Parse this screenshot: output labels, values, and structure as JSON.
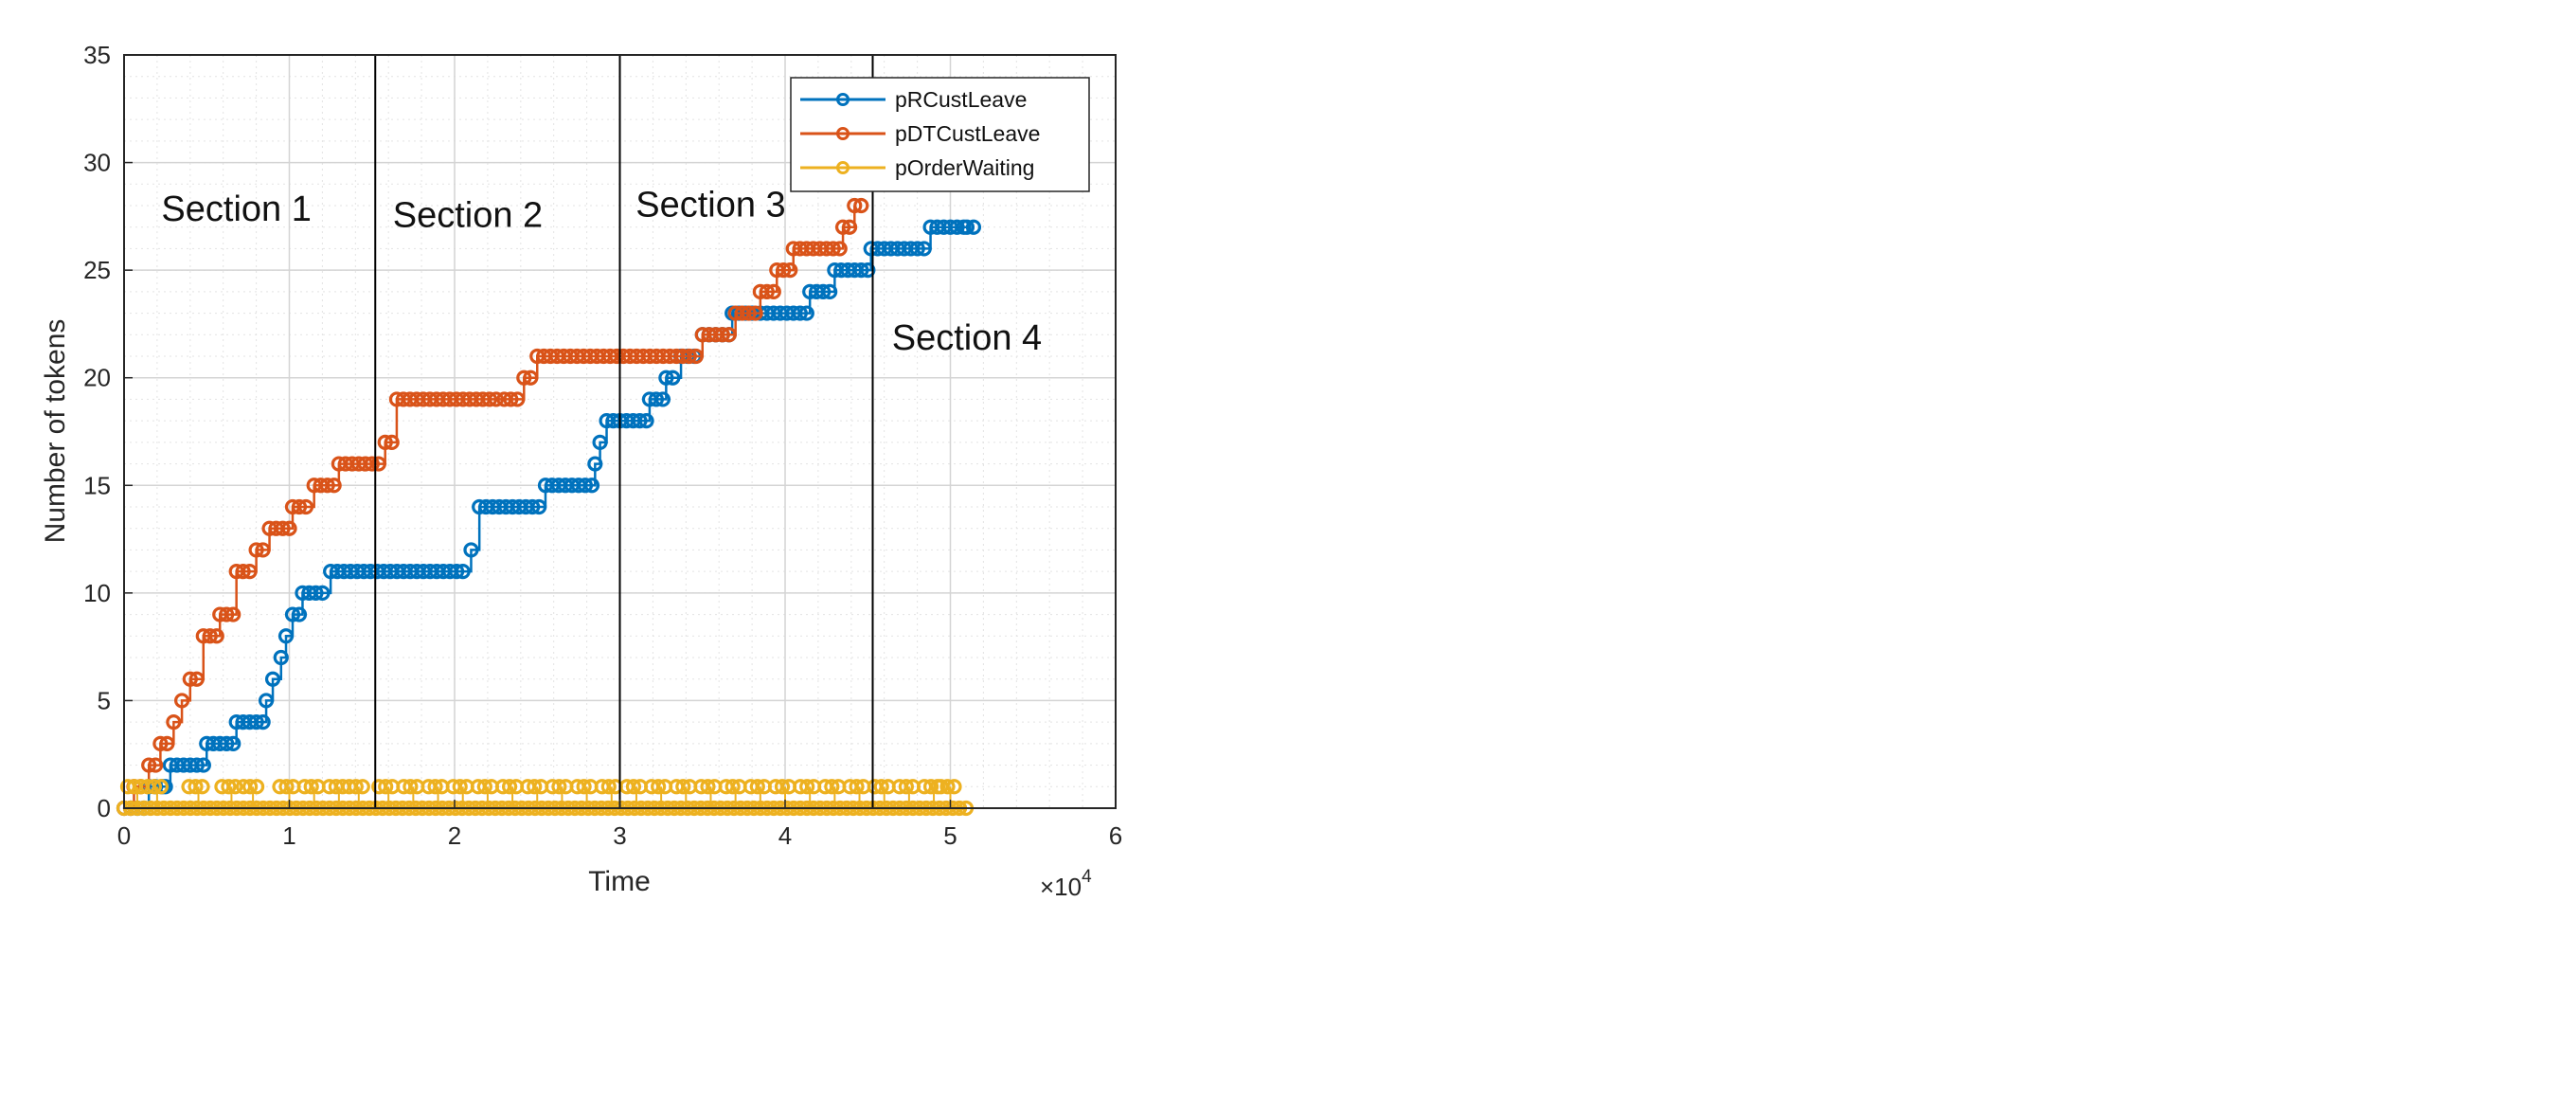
{
  "chart_data": {
    "type": "line",
    "xlabel": "Time",
    "ylabel": "Number of tokens",
    "x_exponent_label": "×10",
    "x_exponent_power": "4",
    "xlim": [
      0,
      6
    ],
    "ylim": [
      0,
      35
    ],
    "x_ticks": [
      0,
      1,
      2,
      3,
      4,
      5,
      6
    ],
    "y_ticks": [
      0,
      5,
      10,
      15,
      20,
      25,
      30,
      35
    ],
    "grid": true,
    "minor_grid": true,
    "legend_position": "top-right",
    "section_lines_x": [
      1.52,
      3.0,
      4.53
    ],
    "section_labels": [
      {
        "text": "Section 1",
        "x": 0.68,
        "y": 27.3
      },
      {
        "text": "Section 2",
        "x": 2.08,
        "y": 27.0
      },
      {
        "text": "Section 3",
        "x": 3.55,
        "y": 27.5
      },
      {
        "text": "Section 4",
        "x": 5.1,
        "y": 21.3
      }
    ],
    "series": [
      {
        "name": "pRCustLeave",
        "color": "#0072BD",
        "x": [
          0,
          0.15,
          0.25,
          0.28,
          0.5,
          0.68,
          0.86,
          0.9,
          0.95,
          0.98,
          1.02,
          1.08,
          1.25,
          2.05,
          2.1,
          2.15,
          2.55,
          2.85,
          2.88,
          2.92,
          3.18,
          3.28,
          3.37,
          3.5,
          3.68,
          3.85,
          4.15,
          4.3,
          4.52,
          4.88,
          5.1
        ],
        "y": [
          0,
          1,
          1,
          2,
          3,
          4,
          5,
          6,
          7,
          8,
          9,
          10,
          11,
          11,
          12,
          14,
          15,
          16,
          17,
          18,
          19,
          20,
          21,
          22,
          23,
          23,
          24,
          25,
          26,
          27,
          27
        ]
      },
      {
        "name": "pDTCustLeave",
        "color": "#D95319",
        "x": [
          0,
          0.06,
          0.15,
          0.22,
          0.3,
          0.35,
          0.4,
          0.48,
          0.58,
          0.68,
          0.8,
          0.88,
          1.02,
          1.15,
          1.3,
          1.58,
          1.65,
          2.3,
          2.42,
          2.5,
          3.38,
          3.5,
          3.7,
          3.85,
          3.95,
          4.05,
          4.35,
          4.42
        ],
        "y": [
          0,
          1,
          2,
          3,
          4,
          5,
          6,
          8,
          9,
          11,
          12,
          13,
          14,
          15,
          16,
          17,
          19,
          19,
          20,
          21,
          21,
          22,
          23,
          24,
          25,
          26,
          27,
          28
        ]
      },
      {
        "name": "pOrderWaiting",
        "color": "#EDB120",
        "x": [
          0,
          5.1
        ],
        "y": [
          0,
          0
        ],
        "spikes_x": [
          0.08,
          0.2,
          0.45,
          0.65,
          0.78,
          1.0,
          1.15,
          1.3,
          1.42,
          1.6,
          1.75,
          1.9,
          2.05,
          2.2,
          2.35,
          2.5,
          2.65,
          2.8,
          2.95,
          3.1,
          3.25,
          3.4,
          3.55,
          3.7,
          3.85,
          4.0,
          4.15,
          4.3,
          4.45,
          4.6,
          4.75,
          4.9,
          5.0
        ],
        "spike_value": 1
      }
    ]
  }
}
